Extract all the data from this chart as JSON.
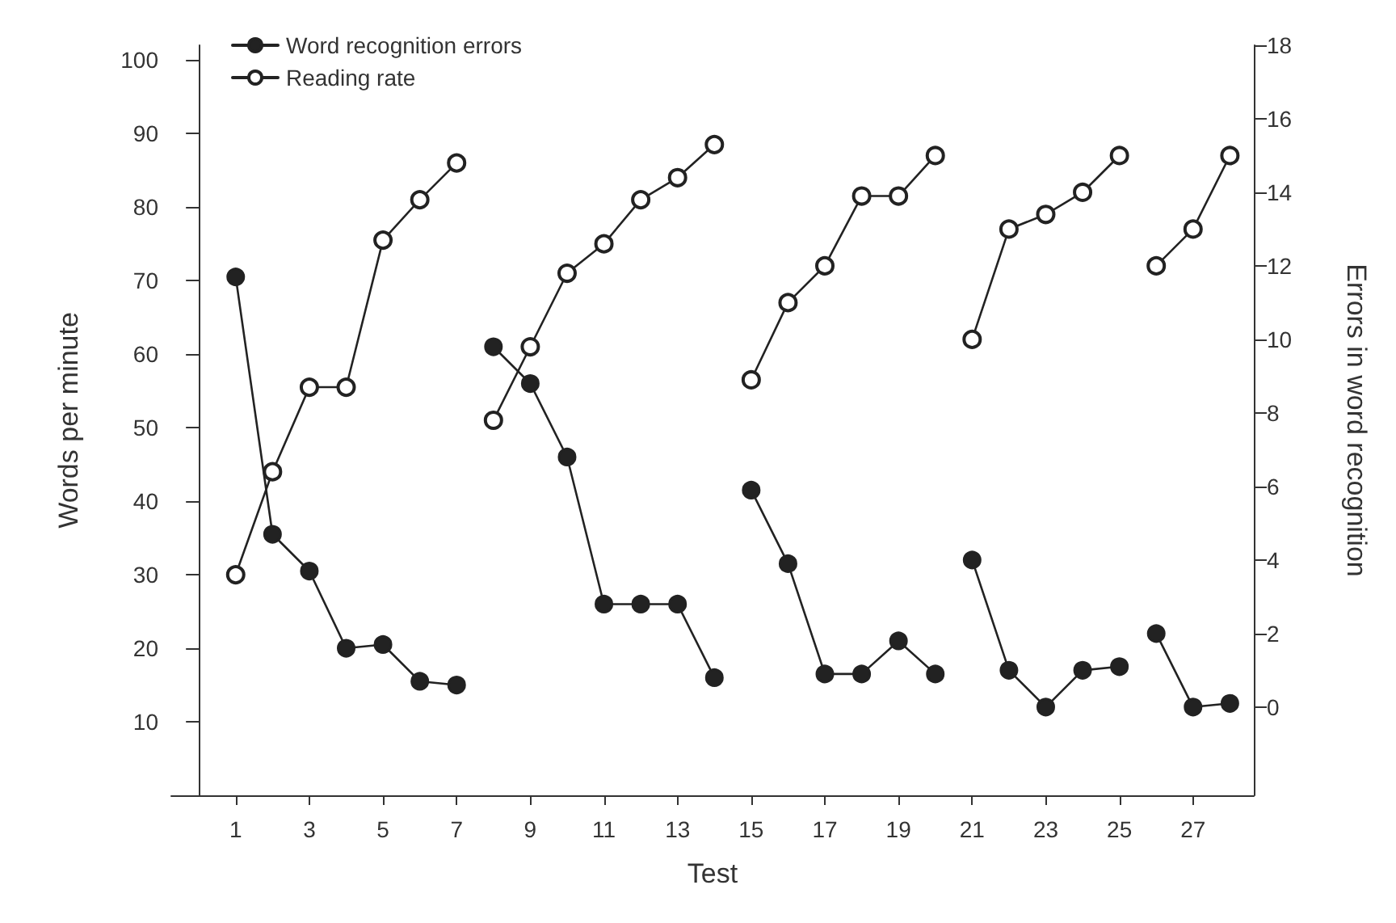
{
  "chart_data": {
    "type": "line",
    "xlabel": "Test",
    "ylabel": "Words per minute",
    "y2label": "Errors in word recognition",
    "x": [
      1,
      2,
      3,
      4,
      5,
      6,
      7,
      7.5,
      8,
      9,
      10,
      11,
      12,
      13,
      14,
      14.5,
      15,
      16,
      17,
      18,
      19,
      20,
      20.5,
      21,
      22,
      23,
      24,
      25,
      25.5,
      26,
      27,
      28
    ],
    "series": [
      {
        "name": "Word recognition errors",
        "color": "#222222",
        "axis": "y2",
        "marker": "circle",
        "values": [
          11.7,
          4.7,
          3.7,
          1.6,
          1.7,
          0.7,
          0.6,
          null,
          9.8,
          8.8,
          6.8,
          2.8,
          2.8,
          2.8,
          0.8,
          null,
          5.9,
          3.9,
          0.9,
          0.9,
          1.8,
          0.9,
          null,
          4.0,
          1.0,
          0.0,
          1.0,
          1.1,
          null,
          2.0,
          0.0,
          0.1
        ]
      },
      {
        "name": "Reading rate",
        "color": "#222222",
        "axis": "y",
        "marker": "circle",
        "values": [
          30,
          44,
          55.5,
          55.5,
          75.5,
          81,
          86,
          null,
          51,
          61,
          71,
          75,
          81,
          84,
          88.5,
          null,
          56.5,
          67,
          72,
          81.5,
          81.5,
          87,
          null,
          62,
          77,
          79,
          82,
          87,
          null,
          72,
          77,
          87
        ]
      }
    ],
    "xlim": [
      -0.75,
      28.65
    ],
    "xticks": [
      1,
      3,
      5,
      7,
      9,
      11,
      13,
      15,
      17,
      19,
      21,
      23,
      25,
      27
    ],
    "ylim": [
      0,
      102
    ],
    "yticks": [
      10,
      20,
      30,
      40,
      50,
      60,
      70,
      80,
      90,
      100
    ],
    "y2lim": [
      -2.4,
      18
    ],
    "y2ticks": [
      0,
      2,
      4,
      6,
      8,
      10,
      12,
      14,
      16,
      18
    ],
    "grid": false,
    "legend": "top left",
    "line_style": "solid"
  }
}
